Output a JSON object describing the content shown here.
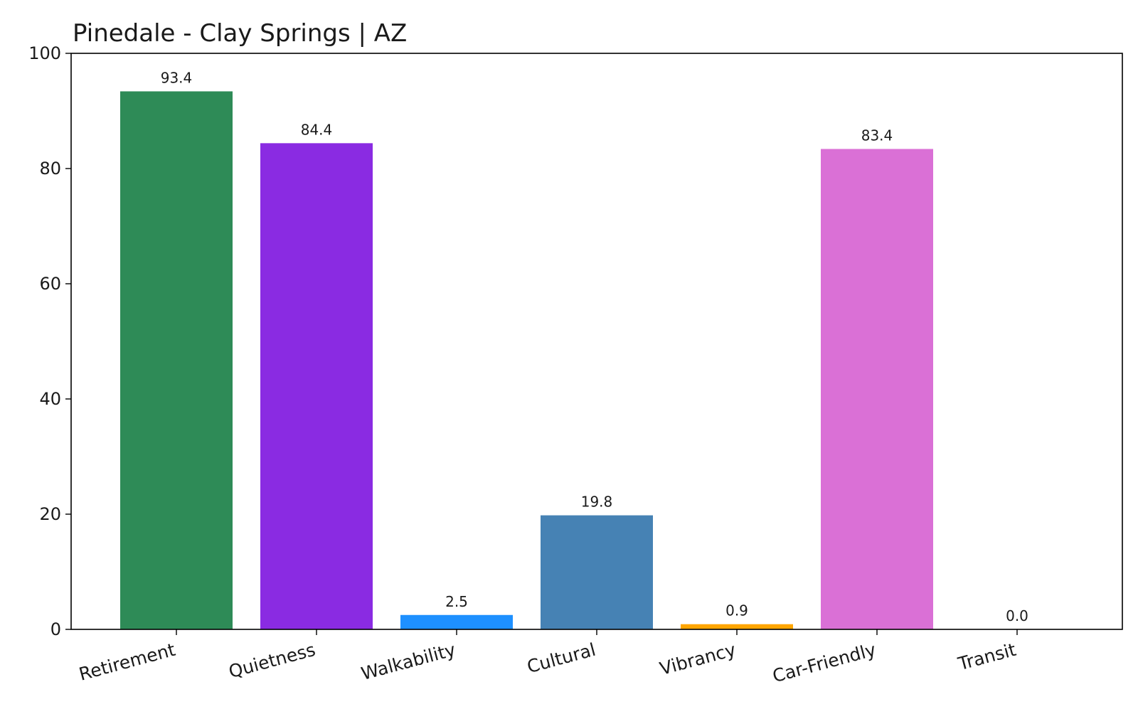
{
  "chart_data": {
    "type": "bar",
    "title": "Pinedale - Clay Springs | AZ",
    "xlabel": "",
    "ylabel": "",
    "categories": [
      "Retirement",
      "Quietness",
      "Walkability",
      "Cultural",
      "Vibrancy",
      "Car-Friendly",
      "Transit"
    ],
    "values": [
      93.4,
      84.4,
      2.5,
      19.8,
      0.9,
      83.4,
      0.0
    ],
    "value_labels": [
      "93.4",
      "84.4",
      "2.5",
      "19.8",
      "0.9",
      "83.4",
      "0.0"
    ],
    "colors": [
      "#2e8b57",
      "#8a2be2",
      "#1e90ff",
      "#4682b4",
      "#ffa500",
      "#da70d6",
      "#808080"
    ],
    "ylim": [
      0,
      100
    ],
    "yticks": [
      0,
      20,
      40,
      60,
      80,
      100
    ],
    "ytick_labels": [
      "0",
      "20",
      "40",
      "60",
      "80",
      "100"
    ],
    "grid": false,
    "legend": "none"
  }
}
